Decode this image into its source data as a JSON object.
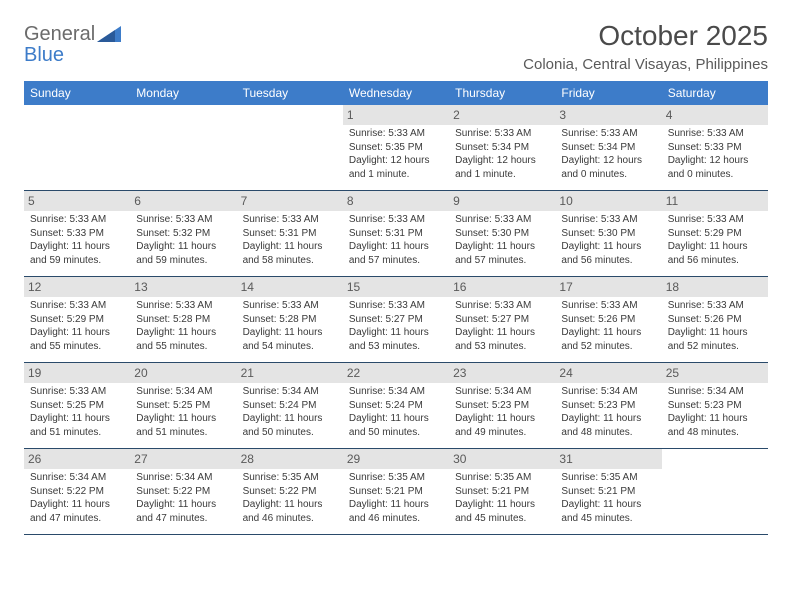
{
  "logo": {
    "text1": "General",
    "text2": "Blue"
  },
  "title": "October 2025",
  "location": "Colonia, Central Visayas, Philippines",
  "colors": {
    "header_bg": "#3d7cc9",
    "header_text": "#ffffff",
    "daynum_bg": "#e4e4e4",
    "cell_border": "#2a4a6a",
    "body_text": "#3a3a3a"
  },
  "days_of_week": [
    "Sunday",
    "Monday",
    "Tuesday",
    "Wednesday",
    "Thursday",
    "Friday",
    "Saturday"
  ],
  "weeks": [
    [
      {
        "n": "",
        "sr": "",
        "ss": "",
        "dl": ""
      },
      {
        "n": "",
        "sr": "",
        "ss": "",
        "dl": ""
      },
      {
        "n": "",
        "sr": "",
        "ss": "",
        "dl": ""
      },
      {
        "n": "1",
        "sr": "Sunrise: 5:33 AM",
        "ss": "Sunset: 5:35 PM",
        "dl": "Daylight: 12 hours and 1 minute."
      },
      {
        "n": "2",
        "sr": "Sunrise: 5:33 AM",
        "ss": "Sunset: 5:34 PM",
        "dl": "Daylight: 12 hours and 1 minute."
      },
      {
        "n": "3",
        "sr": "Sunrise: 5:33 AM",
        "ss": "Sunset: 5:34 PM",
        "dl": "Daylight: 12 hours and 0 minutes."
      },
      {
        "n": "4",
        "sr": "Sunrise: 5:33 AM",
        "ss": "Sunset: 5:33 PM",
        "dl": "Daylight: 12 hours and 0 minutes."
      }
    ],
    [
      {
        "n": "5",
        "sr": "Sunrise: 5:33 AM",
        "ss": "Sunset: 5:33 PM",
        "dl": "Daylight: 11 hours and 59 minutes."
      },
      {
        "n": "6",
        "sr": "Sunrise: 5:33 AM",
        "ss": "Sunset: 5:32 PM",
        "dl": "Daylight: 11 hours and 59 minutes."
      },
      {
        "n": "7",
        "sr": "Sunrise: 5:33 AM",
        "ss": "Sunset: 5:31 PM",
        "dl": "Daylight: 11 hours and 58 minutes."
      },
      {
        "n": "8",
        "sr": "Sunrise: 5:33 AM",
        "ss": "Sunset: 5:31 PM",
        "dl": "Daylight: 11 hours and 57 minutes."
      },
      {
        "n": "9",
        "sr": "Sunrise: 5:33 AM",
        "ss": "Sunset: 5:30 PM",
        "dl": "Daylight: 11 hours and 57 minutes."
      },
      {
        "n": "10",
        "sr": "Sunrise: 5:33 AM",
        "ss": "Sunset: 5:30 PM",
        "dl": "Daylight: 11 hours and 56 minutes."
      },
      {
        "n": "11",
        "sr": "Sunrise: 5:33 AM",
        "ss": "Sunset: 5:29 PM",
        "dl": "Daylight: 11 hours and 56 minutes."
      }
    ],
    [
      {
        "n": "12",
        "sr": "Sunrise: 5:33 AM",
        "ss": "Sunset: 5:29 PM",
        "dl": "Daylight: 11 hours and 55 minutes."
      },
      {
        "n": "13",
        "sr": "Sunrise: 5:33 AM",
        "ss": "Sunset: 5:28 PM",
        "dl": "Daylight: 11 hours and 55 minutes."
      },
      {
        "n": "14",
        "sr": "Sunrise: 5:33 AM",
        "ss": "Sunset: 5:28 PM",
        "dl": "Daylight: 11 hours and 54 minutes."
      },
      {
        "n": "15",
        "sr": "Sunrise: 5:33 AM",
        "ss": "Sunset: 5:27 PM",
        "dl": "Daylight: 11 hours and 53 minutes."
      },
      {
        "n": "16",
        "sr": "Sunrise: 5:33 AM",
        "ss": "Sunset: 5:27 PM",
        "dl": "Daylight: 11 hours and 53 minutes."
      },
      {
        "n": "17",
        "sr": "Sunrise: 5:33 AM",
        "ss": "Sunset: 5:26 PM",
        "dl": "Daylight: 11 hours and 52 minutes."
      },
      {
        "n": "18",
        "sr": "Sunrise: 5:33 AM",
        "ss": "Sunset: 5:26 PM",
        "dl": "Daylight: 11 hours and 52 minutes."
      }
    ],
    [
      {
        "n": "19",
        "sr": "Sunrise: 5:33 AM",
        "ss": "Sunset: 5:25 PM",
        "dl": "Daylight: 11 hours and 51 minutes."
      },
      {
        "n": "20",
        "sr": "Sunrise: 5:34 AM",
        "ss": "Sunset: 5:25 PM",
        "dl": "Daylight: 11 hours and 51 minutes."
      },
      {
        "n": "21",
        "sr": "Sunrise: 5:34 AM",
        "ss": "Sunset: 5:24 PM",
        "dl": "Daylight: 11 hours and 50 minutes."
      },
      {
        "n": "22",
        "sr": "Sunrise: 5:34 AM",
        "ss": "Sunset: 5:24 PM",
        "dl": "Daylight: 11 hours and 50 minutes."
      },
      {
        "n": "23",
        "sr": "Sunrise: 5:34 AM",
        "ss": "Sunset: 5:23 PM",
        "dl": "Daylight: 11 hours and 49 minutes."
      },
      {
        "n": "24",
        "sr": "Sunrise: 5:34 AM",
        "ss": "Sunset: 5:23 PM",
        "dl": "Daylight: 11 hours and 48 minutes."
      },
      {
        "n": "25",
        "sr": "Sunrise: 5:34 AM",
        "ss": "Sunset: 5:23 PM",
        "dl": "Daylight: 11 hours and 48 minutes."
      }
    ],
    [
      {
        "n": "26",
        "sr": "Sunrise: 5:34 AM",
        "ss": "Sunset: 5:22 PM",
        "dl": "Daylight: 11 hours and 47 minutes."
      },
      {
        "n": "27",
        "sr": "Sunrise: 5:34 AM",
        "ss": "Sunset: 5:22 PM",
        "dl": "Daylight: 11 hours and 47 minutes."
      },
      {
        "n": "28",
        "sr": "Sunrise: 5:35 AM",
        "ss": "Sunset: 5:22 PM",
        "dl": "Daylight: 11 hours and 46 minutes."
      },
      {
        "n": "29",
        "sr": "Sunrise: 5:35 AM",
        "ss": "Sunset: 5:21 PM",
        "dl": "Daylight: 11 hours and 46 minutes."
      },
      {
        "n": "30",
        "sr": "Sunrise: 5:35 AM",
        "ss": "Sunset: 5:21 PM",
        "dl": "Daylight: 11 hours and 45 minutes."
      },
      {
        "n": "31",
        "sr": "Sunrise: 5:35 AM",
        "ss": "Sunset: 5:21 PM",
        "dl": "Daylight: 11 hours and 45 minutes."
      },
      {
        "n": "",
        "sr": "",
        "ss": "",
        "dl": ""
      }
    ]
  ]
}
